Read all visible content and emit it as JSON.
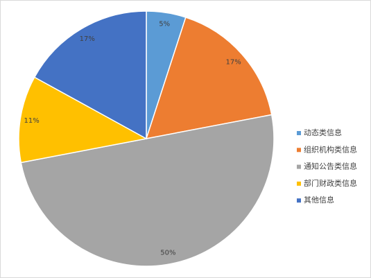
{
  "chart_data": {
    "type": "pie",
    "categories": [
      "动态类信息",
      "组织机构类信息",
      "通知公告类信息",
      "部门财政类信息",
      "其他信息"
    ],
    "values": [
      5,
      17,
      50,
      11,
      17
    ],
    "value_labels": [
      "5%",
      "17%",
      "50%",
      "11%",
      "17%"
    ],
    "colors": [
      "#5b9bd5",
      "#ed7d31",
      "#a5a5a5",
      "#ffc000",
      "#4472c4"
    ],
    "legend": "right"
  }
}
